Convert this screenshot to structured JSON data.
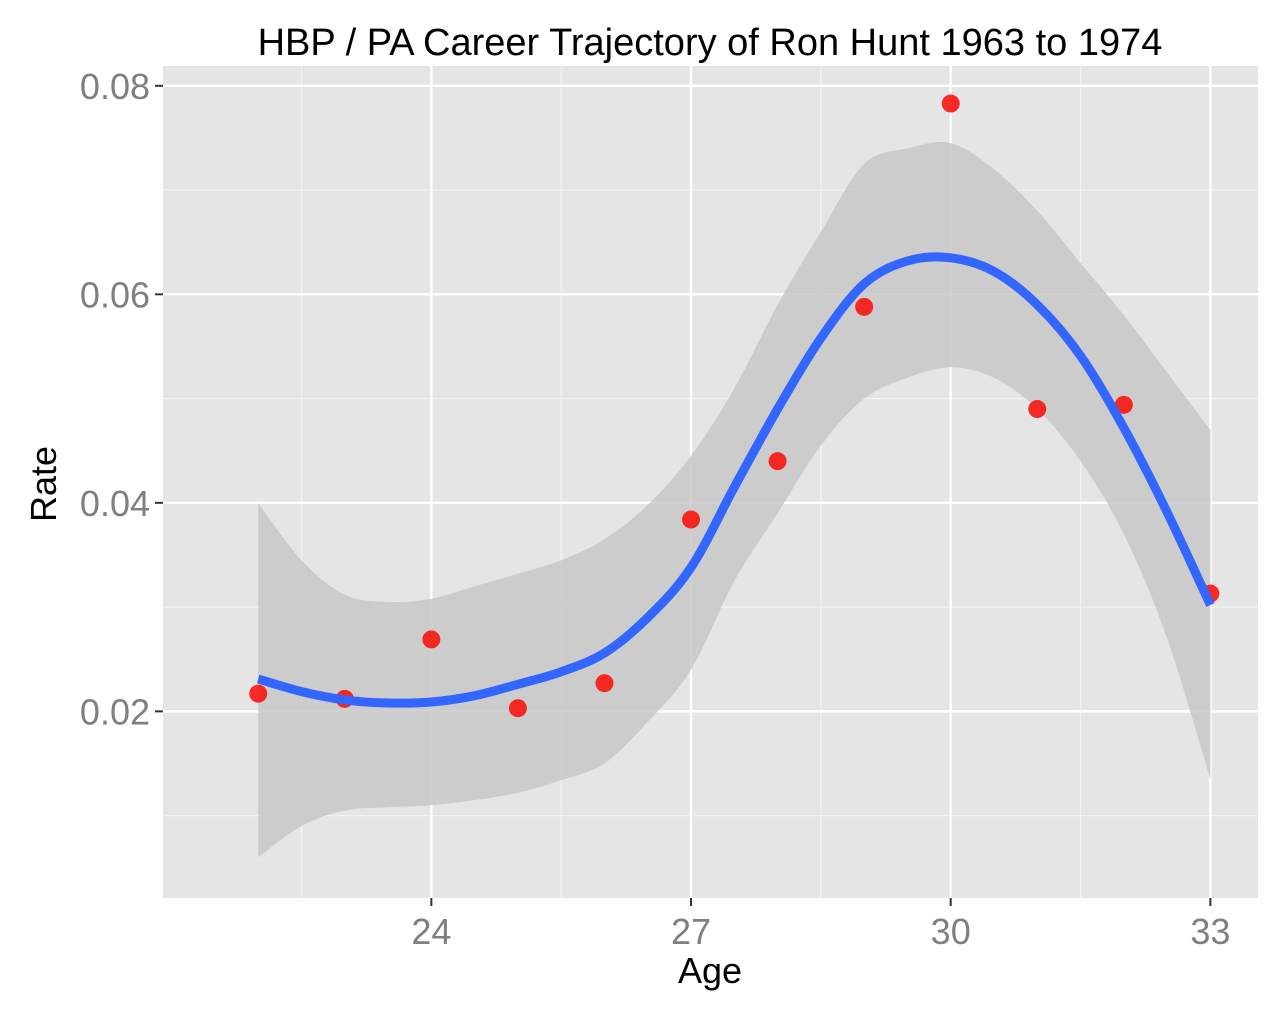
{
  "chart_data": {
    "type": "scatter",
    "title": "HBP / PA Career Trajectory of Ron Hunt 1963 to 1974",
    "xlabel": "Age",
    "ylabel": "Rate",
    "xlim": [
      20.9,
      33.55
    ],
    "ylim": [
      0.0021,
      0.0819
    ],
    "x_ticks": [
      24,
      27,
      30,
      33
    ],
    "x_tick_labels": [
      "24",
      "27",
      "30",
      "33"
    ],
    "y_ticks": [
      0.02,
      0.04,
      0.06,
      0.08
    ],
    "y_tick_labels": [
      "0.02",
      "0.04",
      "0.06",
      "0.08"
    ],
    "grid": true,
    "legend": "none",
    "points": {
      "x": [
        22,
        23,
        24,
        25,
        26,
        27,
        28,
        29,
        30,
        31,
        32,
        33
      ],
      "y": [
        0.0217,
        0.0212,
        0.0269,
        0.0203,
        0.0227,
        0.0384,
        0.044,
        0.0588,
        0.0783,
        0.049,
        0.0494,
        0.0313
      ]
    },
    "smooth": {
      "x": [
        22,
        22.5,
        23,
        23.5,
        24,
        24.5,
        25,
        25.5,
        26,
        26.5,
        27,
        27.5,
        28,
        28.5,
        29,
        29.5,
        30,
        30.5,
        31,
        31.5,
        32,
        32.5,
        33
      ],
      "y": [
        0.0231,
        0.0219,
        0.0211,
        0.0208,
        0.0209,
        0.0215,
        0.0226,
        0.0238,
        0.0256,
        0.029,
        0.0338,
        0.0415,
        0.049,
        0.0558,
        0.061,
        0.0632,
        0.0635,
        0.0622,
        0.059,
        0.0541,
        0.0472,
        0.0391,
        0.0302
      ],
      "lower": [
        0.006,
        0.009,
        0.0105,
        0.0108,
        0.011,
        0.0115,
        0.0122,
        0.0134,
        0.015,
        0.019,
        0.024,
        0.0325,
        0.039,
        0.0455,
        0.05,
        0.052,
        0.053,
        0.052,
        0.049,
        0.044,
        0.037,
        0.027,
        0.0135
      ],
      "upper": [
        0.04,
        0.0345,
        0.0312,
        0.0305,
        0.0308,
        0.032,
        0.0332,
        0.0345,
        0.0365,
        0.0398,
        0.0445,
        0.051,
        0.059,
        0.066,
        0.0725,
        0.074,
        0.0745,
        0.072,
        0.068,
        0.063,
        0.058,
        0.0525,
        0.047
      ]
    },
    "colors": {
      "panel": "#e5e5e5",
      "grid_major": "#ffffff",
      "grid_minor": "#f2f2f2",
      "points": "#f8160f",
      "line": "#3366ff",
      "band": "#c8c8c8"
    }
  }
}
